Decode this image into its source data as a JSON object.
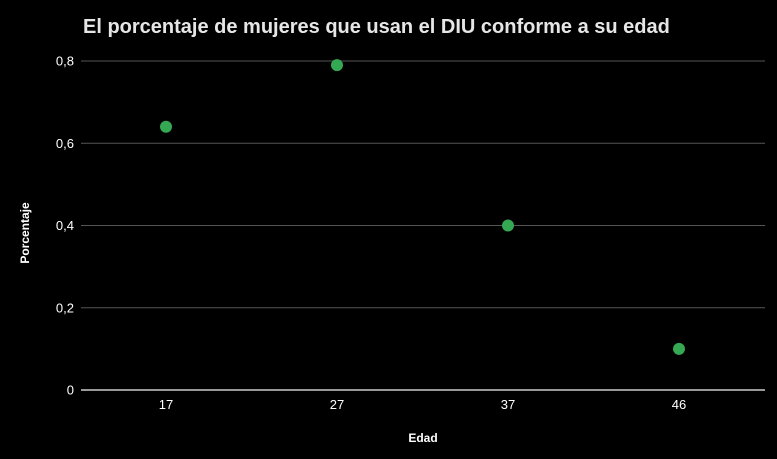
{
  "chart_data": {
    "type": "scatter",
    "title": "El porcentaje de mujeres que usan el DIU conforme a su edad",
    "xlabel": "Edad",
    "ylabel": "Porcentaje",
    "categories": [
      "17",
      "27",
      "37",
      "46"
    ],
    "values": [
      0.64,
      0.79,
      0.4,
      0.1
    ],
    "y_ticks": [
      "0",
      "0,2",
      "0,4",
      "0,6",
      "0,8"
    ],
    "y_tick_values": [
      0,
      0.2,
      0.4,
      0.6,
      0.8
    ],
    "ylim": [
      0,
      0.8
    ],
    "grid": true,
    "legend": "none",
    "colors": {
      "background": "#000000",
      "point": "#34a853",
      "gridline": "#555555",
      "baseline": "#cccccc",
      "title": "#e6e6e6",
      "text": "#ffffff"
    }
  }
}
